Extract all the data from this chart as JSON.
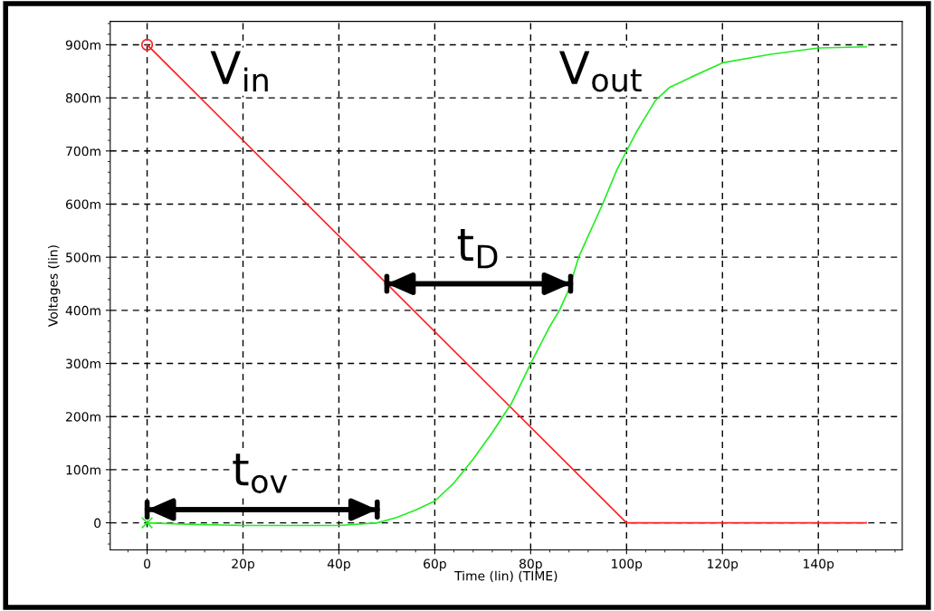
{
  "chart_data": {
    "type": "line",
    "xlabel": "Time (lin) (TIME)",
    "ylabel": "Voltages (lin)",
    "xlim": [
      -7.7,
      157.5
    ],
    "ylim": [
      -51,
      944
    ],
    "xticks": [
      {
        "value": 0,
        "label": "0"
      },
      {
        "value": 20,
        "label": "20p"
      },
      {
        "value": 40,
        "label": "40p"
      },
      {
        "value": 60,
        "label": "60p"
      },
      {
        "value": 80,
        "label": "80p"
      },
      {
        "value": 100,
        "label": "100p"
      },
      {
        "value": 120,
        "label": "120p"
      },
      {
        "value": 140,
        "label": "140p"
      }
    ],
    "yticks": [
      {
        "value": 0,
        "label": "0"
      },
      {
        "value": 100,
        "label": "100m"
      },
      {
        "value": 200,
        "label": "200m"
      },
      {
        "value": 300,
        "label": "300m"
      },
      {
        "value": 400,
        "label": "400m"
      },
      {
        "value": 500,
        "label": "500m"
      },
      {
        "value": 600,
        "label": "600m"
      },
      {
        "value": 700,
        "label": "700m"
      },
      {
        "value": 800,
        "label": "800m"
      },
      {
        "value": 900,
        "label": "900m"
      }
    ],
    "grid": true,
    "series": [
      {
        "color": "#ff2020",
        "x": [
          0,
          100,
          150
        ],
        "values": [
          900,
          0,
          0
        ]
      },
      {
        "color": "#22ee22",
        "x": [
          0,
          10,
          20,
          30,
          40,
          48,
          52,
          56,
          60,
          64,
          68,
          72,
          76,
          80,
          84,
          86,
          88,
          90,
          92,
          95,
          98,
          100,
          102,
          104,
          106,
          109,
          113,
          120,
          130,
          140,
          150
        ],
        "values": [
          0,
          -3,
          -5,
          -5,
          -5,
          0,
          10,
          24,
          41,
          75,
          120,
          170,
          225,
          300,
          370,
          400,
          440,
          500,
          540,
          600,
          665,
          700,
          735,
          765,
          795,
          820,
          837,
          866,
          882,
          894,
          896
        ]
      },
      {
        "type": "scatter",
        "color": "#ff2020",
        "marker": "circle",
        "x": [
          0
        ],
        "values": [
          900
        ]
      },
      {
        "type": "scatter",
        "color": "#22ee22",
        "marker": "cross",
        "x": [
          0
        ],
        "values": [
          0
        ]
      }
    ],
    "annotations": [
      "V$_{in}$",
      "V$_{out}$",
      "t$_{D}$",
      "t$_{ov}$"
    ]
  }
}
